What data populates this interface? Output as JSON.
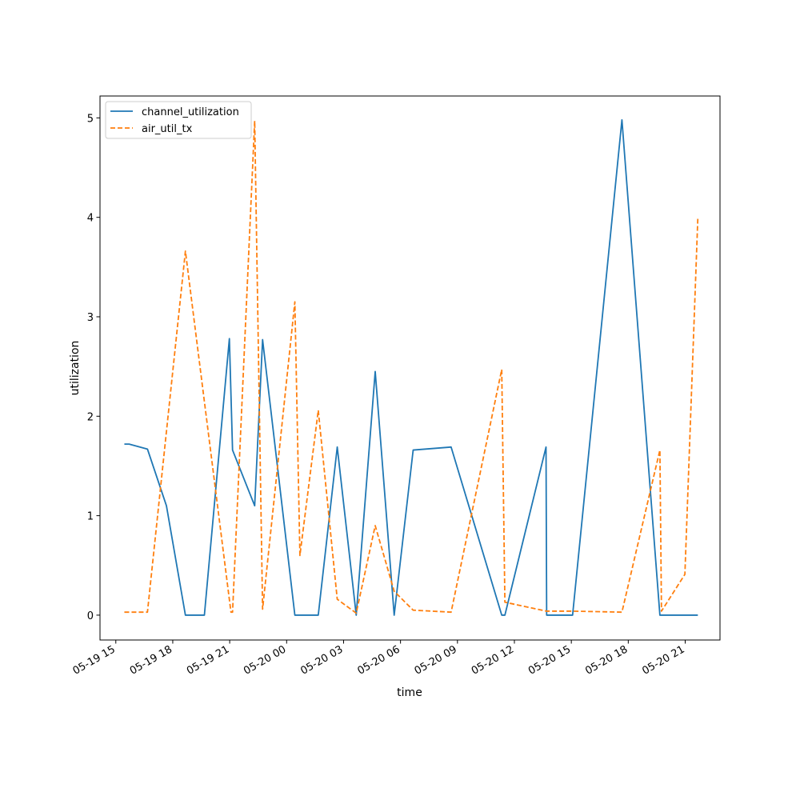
{
  "chart_data": {
    "type": "line",
    "title": "",
    "xlabel": "time",
    "ylabel": "utilization",
    "xlim": [
      "2024-05-19 14:10",
      "2024-05-20 22:50"
    ],
    "ylim": [
      -0.25,
      5.22
    ],
    "x_ticks": [
      {
        "t": "2024-05-19 15:00",
        "label": "05-19 15"
      },
      {
        "t": "2024-05-19 18:00",
        "label": "05-19 18"
      },
      {
        "t": "2024-05-19 21:00",
        "label": "05-19 21"
      },
      {
        "t": "2024-05-20 00:00",
        "label": "05-20 00"
      },
      {
        "t": "2024-05-20 03:00",
        "label": "05-20 03"
      },
      {
        "t": "2024-05-20 06:00",
        "label": "05-20 06"
      },
      {
        "t": "2024-05-20 09:00",
        "label": "05-20 09"
      },
      {
        "t": "2024-05-20 12:00",
        "label": "05-20 12"
      },
      {
        "t": "2024-05-20 15:00",
        "label": "05-20 15"
      },
      {
        "t": "2024-05-20 18:00",
        "label": "05-20 18"
      },
      {
        "t": "2024-05-20 21:00",
        "label": "05-20 21"
      }
    ],
    "y_ticks": [
      0,
      1,
      2,
      3,
      4,
      5
    ],
    "grid": false,
    "legend_position": "upper-left",
    "series": [
      {
        "name": "channel_utilization",
        "color": "#1f77b4",
        "dash": "solid",
        "points": [
          [
            "2024-05-19 15:27",
            1.72
          ],
          [
            "2024-05-19 15:42",
            1.72
          ],
          [
            "2024-05-19 16:40",
            1.67
          ],
          [
            "2024-05-19 17:40",
            1.1
          ],
          [
            "2024-05-19 18:40",
            0.0
          ],
          [
            "2024-05-19 19:40",
            0.0
          ],
          [
            "2024-05-19 20:59",
            2.78
          ],
          [
            "2024-05-19 21:09",
            1.66
          ],
          [
            "2024-05-19 22:19",
            1.1
          ],
          [
            "2024-05-19 22:44",
            2.77
          ],
          [
            "2024-05-20 00:26",
            0.0
          ],
          [
            "2024-05-20 01:40",
            0.0
          ],
          [
            "2024-05-20 02:40",
            1.69
          ],
          [
            "2024-05-20 03:40",
            0.0
          ],
          [
            "2024-05-20 04:40",
            2.45
          ],
          [
            "2024-05-20 05:40",
            0.0
          ],
          [
            "2024-05-20 06:40",
            1.66
          ],
          [
            "2024-05-20 08:40",
            1.69
          ],
          [
            "2024-05-20 11:20",
            0.0
          ],
          [
            "2024-05-20 11:30",
            0.0
          ],
          [
            "2024-05-20 13:40",
            1.69
          ],
          [
            "2024-05-20 13:42",
            0.0
          ],
          [
            "2024-05-20 15:04",
            0.0
          ],
          [
            "2024-05-20 17:40",
            4.98
          ],
          [
            "2024-05-20 19:40",
            0.0
          ],
          [
            "2024-05-20 21:40",
            0.0
          ]
        ]
      },
      {
        "name": "air_util_tx",
        "color": "#ff7f0e",
        "dash": "dashed",
        "points": [
          [
            "2024-05-19 15:27",
            0.03
          ],
          [
            "2024-05-19 16:40",
            0.03
          ],
          [
            "2024-05-19 18:40",
            3.66
          ],
          [
            "2024-05-19 21:04",
            0.03
          ],
          [
            "2024-05-19 21:09",
            0.03
          ],
          [
            "2024-05-19 22:19",
            4.97
          ],
          [
            "2024-05-19 22:44",
            0.06
          ],
          [
            "2024-05-20 00:26",
            3.15
          ],
          [
            "2024-05-20 00:42",
            0.6
          ],
          [
            "2024-05-20 01:40",
            2.06
          ],
          [
            "2024-05-20 02:40",
            0.16
          ],
          [
            "2024-05-20 03:40",
            0.02
          ],
          [
            "2024-05-20 04:40",
            0.9
          ],
          [
            "2024-05-20 05:40",
            0.24
          ],
          [
            "2024-05-20 06:40",
            0.05
          ],
          [
            "2024-05-20 08:40",
            0.03
          ],
          [
            "2024-05-20 11:20",
            2.47
          ],
          [
            "2024-05-20 11:30",
            0.13
          ],
          [
            "2024-05-20 13:42",
            0.04
          ],
          [
            "2024-05-20 15:04",
            0.04
          ],
          [
            "2024-05-20 17:40",
            0.03
          ],
          [
            "2024-05-20 19:40",
            1.66
          ],
          [
            "2024-05-20 19:45",
            0.04
          ],
          [
            "2024-05-20 20:59",
            0.41
          ],
          [
            "2024-05-20 21:40",
            4.0
          ]
        ]
      }
    ]
  }
}
